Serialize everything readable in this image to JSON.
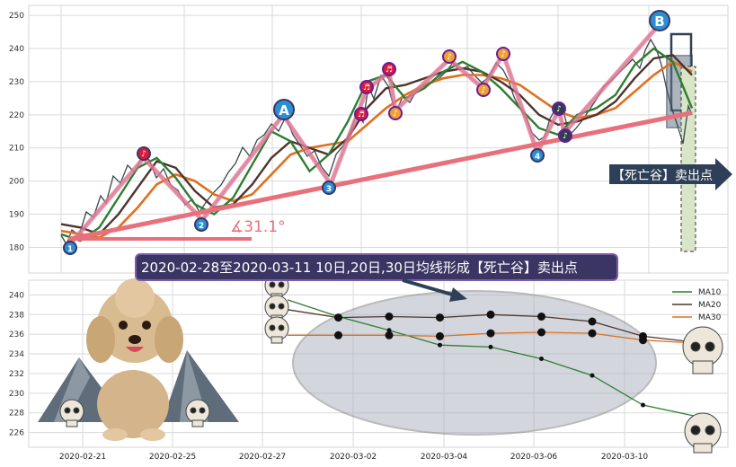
{
  "colors": {
    "ma10": "#2e7d32",
    "ma20": "#4e342e",
    "ma30": "#e07020",
    "price": "#37474f",
    "trend": "#e8707c",
    "marker_blue": "#2a8fd4",
    "marker_red": "#d81b3c",
    "marker_orange": "#f0a030",
    "marker_dark": "#2c3e50",
    "banner_bg": "#3b3563",
    "arrow_bg": "#2e4057"
  },
  "top_panel": {
    "y_ticks": [
      "250",
      "240",
      "230",
      "220",
      "210",
      "200",
      "190",
      "180"
    ],
    "angle_label": "∡31.1°",
    "wave_labels": {
      "A": "A",
      "B": "B"
    },
    "count_labels": [
      "1",
      "2",
      "3",
      "4"
    ],
    "death_valley_label": "【死亡谷】卖出点"
  },
  "banner": {
    "text": "2020-02-28至2020-03-11 10日,20日,30日均线形成【死亡谷】卖出点"
  },
  "bottom_panel": {
    "y_ticks": [
      "240",
      "238",
      "236",
      "234",
      "232",
      "230",
      "228",
      "226"
    ],
    "x_ticks": [
      "2020-02-21",
      "2020-02-25",
      "2020-02-27",
      "2020-03-02",
      "2020-03-04",
      "2020-03-06",
      "2020-03-10"
    ],
    "legend": [
      {
        "name": "MA10",
        "color": "#2e7d32"
      },
      {
        "name": "MA20",
        "color": "#4e342e"
      },
      {
        "name": "MA30",
        "color": "#e07020"
      }
    ]
  },
  "chart_data": [
    {
      "type": "line",
      "description_panel": "top",
      "ylim": [
        172,
        253
      ],
      "y_ticks": [
        180,
        190,
        200,
        210,
        220,
        230,
        240,
        250
      ],
      "series": [
        {
          "name": "MA10",
          "values": [
            184,
            182,
            186,
            195,
            204,
            207,
            201,
            193,
            190,
            195,
            205,
            215,
            212,
            203,
            208,
            218,
            230,
            232,
            225,
            228,
            233,
            236,
            233,
            228,
            222,
            216,
            214,
            220,
            222,
            226,
            235,
            240,
            236,
            222
          ]
        },
        {
          "name": "MA20",
          "values": [
            187,
            186,
            184,
            190,
            198,
            206,
            204,
            197,
            192,
            193,
            199,
            207,
            212,
            210,
            208,
            213,
            222,
            228,
            229,
            231,
            233,
            234,
            233,
            230,
            226,
            220,
            217,
            218,
            220,
            224,
            231,
            237,
            238,
            232
          ]
        },
        {
          "name": "MA30",
          "values": [
            185,
            184,
            183,
            186,
            192,
            199,
            202,
            200,
            196,
            194,
            196,
            202,
            208,
            210,
            211,
            212,
            217,
            222,
            226,
            229,
            231,
            232,
            232,
            231,
            229,
            225,
            221,
            219,
            220,
            222,
            227,
            232,
            236,
            233
          ]
        }
      ]
    },
    {
      "type": "line",
      "description_panel": "bottom",
      "x": [
        "2020-02-28",
        "2020-03-02",
        "2020-03-03",
        "2020-03-04",
        "2020-03-05",
        "2020-03-06",
        "2020-03-09",
        "2020-03-10",
        "2020-03-11"
      ],
      "ylim": [
        224.5,
        241.5
      ],
      "y_ticks": [
        226,
        228,
        230,
        232,
        234,
        236,
        238,
        240
      ],
      "series": [
        {
          "name": "MA10",
          "values": [
            239.5,
            237.8,
            236.4,
            234.9,
            234.7,
            233.5,
            231.8,
            228.8,
            227.7
          ]
        },
        {
          "name": "MA20",
          "values": [
            238.5,
            237.7,
            237.8,
            237.7,
            238.0,
            237.8,
            237.3,
            235.8,
            235.2
          ]
        },
        {
          "name": "MA30",
          "values": [
            235.9,
            235.9,
            235.9,
            235.8,
            236.1,
            236.2,
            236.1,
            235.4,
            235.1
          ]
        }
      ]
    }
  ]
}
